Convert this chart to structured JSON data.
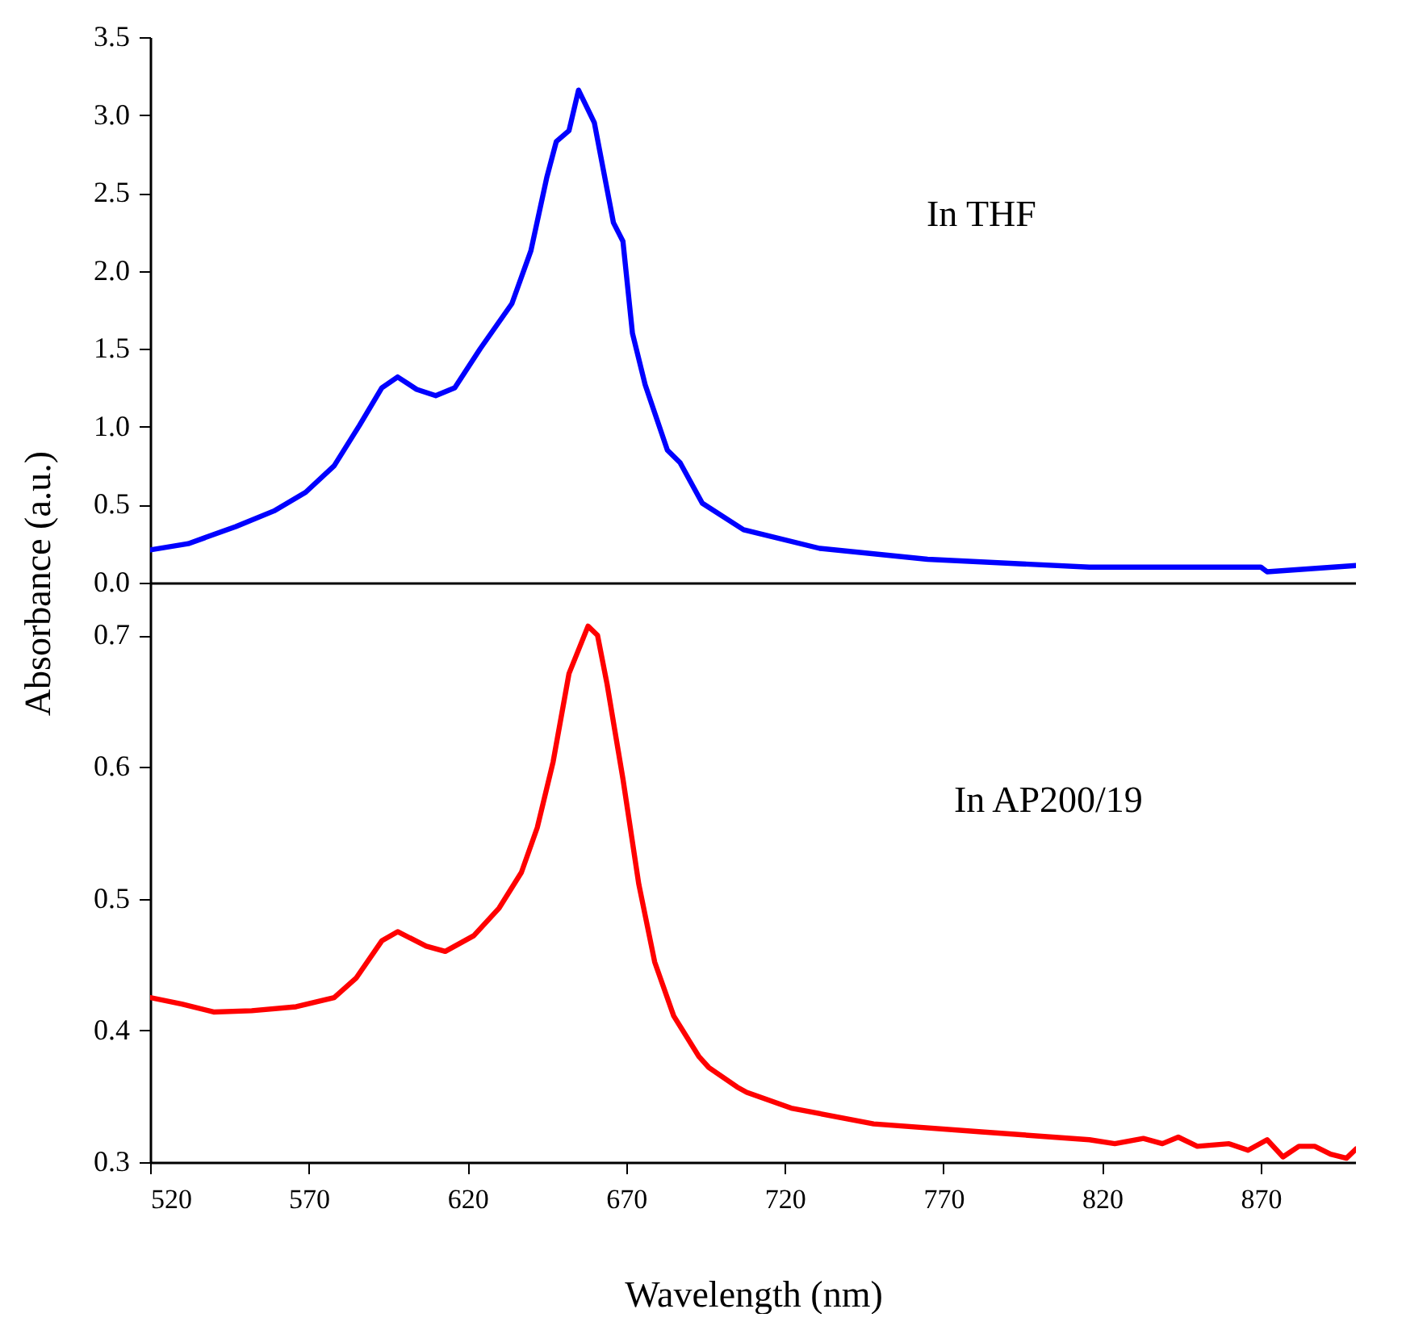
{
  "chart_data": [
    {
      "type": "line",
      "ylabel": "Absorbance (a.u.)",
      "annotations": [
        "In THF"
      ],
      "xlim": [
        520,
        900
      ],
      "ylim": [
        0,
        3.5
      ],
      "yticks": [
        {
          "value": 0,
          "label": "0.0"
        },
        {
          "value": 0.5,
          "label": "0.5"
        },
        {
          "value": 1,
          "label": "1.0"
        },
        {
          "value": 1.5,
          "label": "1.5"
        },
        {
          "value": 2,
          "label": "2.0"
        },
        {
          "value": 2.5,
          "label": "2.5"
        },
        {
          "value": 3,
          "label": "3.0"
        },
        {
          "value": 3.5,
          "label": "3.5"
        }
      ],
      "tick_labels": "y",
      "x": [
        520,
        532,
        547,
        559,
        569,
        578,
        586,
        593,
        598,
        604,
        610,
        616,
        624,
        634,
        640,
        645,
        648,
        652,
        655,
        660,
        666,
        669,
        672,
        676,
        683,
        687,
        694,
        707,
        731,
        765,
        816,
        870,
        872,
        900
      ],
      "series": [
        {
          "color": "#0000ff",
          "values": [
            0.21,
            0.25,
            0.36,
            0.46,
            0.58,
            0.75,
            1.01,
            1.25,
            1.32,
            1.24,
            1.2,
            1.25,
            1.5,
            1.79,
            2.13,
            2.6,
            2.83,
            2.9,
            3.16,
            2.95,
            2.31,
            2.19,
            1.6,
            1.27,
            0.85,
            0.77,
            0.51,
            0.34,
            0.22,
            0.15,
            0.1,
            0.1,
            0.07,
            0.11
          ]
        }
      ]
    },
    {
      "type": "line",
      "xlabel": "Wavelength (nm)",
      "annotations": [
        "In AP200/19"
      ],
      "xlim": [
        520,
        900
      ],
      "xticks": [
        520,
        570,
        620,
        670,
        720,
        770,
        820,
        870
      ],
      "ylim": [
        0.3,
        0.74
      ],
      "yticks": [
        0.3,
        0.4,
        0.5,
        0.6,
        0.7
      ],
      "x": [
        520,
        530,
        540,
        552,
        566,
        578,
        585,
        593,
        598,
        607,
        613,
        622,
        630,
        637,
        642,
        647,
        652,
        658,
        661,
        664,
        669,
        674,
        679,
        685,
        693,
        696,
        705,
        708,
        722,
        748,
        782,
        816,
        824,
        833,
        839,
        844,
        850,
        860,
        866,
        872,
        877,
        882,
        887,
        892,
        897,
        900
      ],
      "series": [
        {
          "color": "#ff0000",
          "values": [
            0.425,
            0.42,
            0.414,
            0.415,
            0.418,
            0.425,
            0.44,
            0.468,
            0.475,
            0.464,
            0.46,
            0.472,
            0.493,
            0.52,
            0.554,
            0.604,
            0.671,
            0.707,
            0.7,
            0.663,
            0.591,
            0.511,
            0.452,
            0.411,
            0.38,
            0.372,
            0.357,
            0.353,
            0.341,
            0.329,
            0.323,
            0.317,
            0.314,
            0.318,
            0.314,
            0.319,
            0.312,
            0.314,
            0.309,
            0.317,
            0.304,
            0.312,
            0.312,
            0.306,
            0.303,
            0.31
          ]
        }
      ]
    }
  ]
}
